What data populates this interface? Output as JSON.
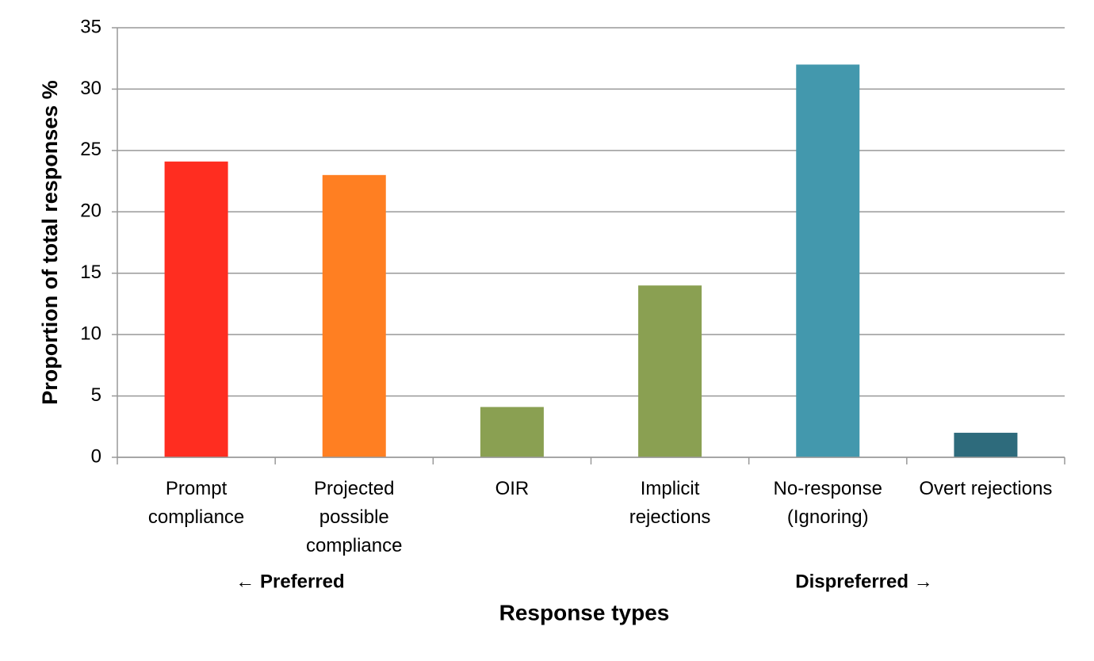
{
  "chart_data": {
    "type": "bar",
    "x_label": "Response types",
    "y_label": "Proportion of total responses %",
    "categories": [
      "Prompt compliance",
      "Projected possible compliance",
      "OIR",
      "Implicit rejections",
      "No-response (Ignoring)",
      "Overt rejections"
    ],
    "values": [
      24.1,
      23,
      4.1,
      14,
      32,
      2
    ],
    "colors": [
      "#ff2d20",
      "#ff7f22",
      "#8aa052",
      "#8aa052",
      "#4398ad",
      "#2e6b7c"
    ],
    "ylim": [
      0,
      35
    ],
    "yticks": [
      0,
      5,
      10,
      15,
      20,
      25,
      30,
      35
    ],
    "grid": true,
    "annotations": [
      "← Preferred",
      "Dispreferred →"
    ]
  }
}
